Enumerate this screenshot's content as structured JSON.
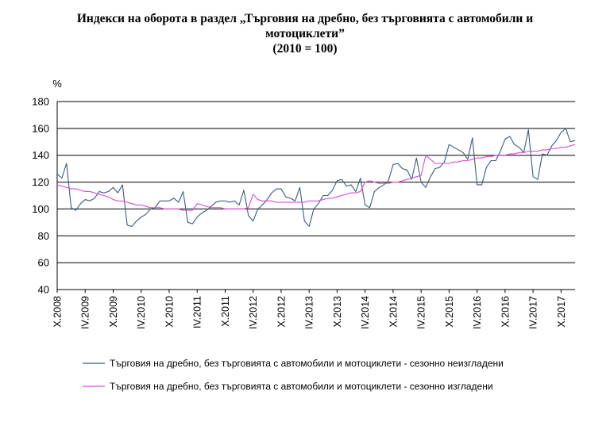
{
  "chart_data": {
    "type": "line",
    "title": "Индекси на оборота в раздел „Търговия на дребно, без търговията с автомобили и",
    "title_line2": "мотоциклети”",
    "subtitle": "(2010 = 100)",
    "ylabel": "%",
    "xlabel": "",
    "ylim": [
      40,
      180
    ],
    "yticks": [
      40,
      60,
      80,
      100,
      120,
      140,
      160,
      180
    ],
    "grid": "horizontal",
    "legend_position": "bottom",
    "x_range": [
      "X.2008",
      "XII.2017"
    ],
    "x_tick_labels": [
      "X.2008",
      "IV.2009",
      "X.2009",
      "IV.2010",
      "X.2010",
      "IV.2011",
      "X.2011",
      "IV.2012",
      "X.2012",
      "IV.2013",
      "X.2013",
      "IV.2014",
      "X.2014",
      "IV.2015",
      "X.2015",
      "IV.2016",
      "X.2016",
      "IV.2017",
      "X.2017"
    ],
    "series": [
      {
        "name": "Търговия на дребно, без търговията с автомобили  и  мотоциклети  - сезонно неизгладени",
        "color": "#3b5b7e",
        "values": [
          126,
          123,
          134,
          101,
          99,
          104,
          107,
          106,
          108,
          113,
          112,
          113,
          116,
          112,
          118,
          88,
          87,
          91,
          94,
          96,
          100,
          101,
          106,
          106,
          106,
          108,
          105,
          113,
          90,
          89,
          94,
          97,
          99,
          102,
          105,
          106,
          106,
          105,
          106,
          103,
          114,
          95,
          91,
          100,
          103,
          107,
          112,
          115,
          115,
          109,
          108,
          106,
          116,
          91,
          87,
          100,
          104,
          110,
          110,
          114,
          121,
          122,
          117,
          118,
          113,
          123,
          103,
          101,
          113,
          116,
          118,
          121,
          133,
          134,
          130,
          129,
          122,
          138,
          120,
          116,
          124,
          130,
          131,
          135,
          148,
          146,
          144,
          142,
          137,
          153,
          118,
          118,
          131,
          136,
          136,
          143,
          152,
          154,
          148,
          146,
          142,
          159,
          124,
          122,
          141,
          140,
          147,
          151,
          157,
          160,
          150,
          151
        ]
      },
      {
        "name": "Търговия на дребно, без търговията с автомобили  и  мотоциклети  - сезонно изгладени",
        "color": "#d94ad9",
        "values": [
          118,
          117,
          116,
          115,
          115,
          114,
          113,
          113,
          112,
          111,
          110,
          109,
          107,
          106,
          106,
          105,
          104,
          103,
          103,
          102,
          101,
          101,
          101,
          100,
          100,
          100,
          100,
          99,
          99,
          99,
          104,
          103,
          102,
          101,
          101,
          101,
          100,
          100,
          100,
          100,
          100,
          101,
          111,
          107,
          106,
          106,
          106,
          105,
          105,
          105,
          105,
          105,
          105,
          105,
          106,
          106,
          106,
          107,
          108,
          108,
          109,
          110,
          111,
          112,
          112,
          113,
          120,
          121,
          120,
          119,
          119,
          119,
          120,
          120,
          121,
          122,
          123,
          124,
          125,
          140,
          137,
          134,
          134,
          134,
          134,
          135,
          135,
          136,
          136,
          137,
          138,
          138,
          139,
          139,
          140,
          140,
          140,
          141,
          141,
          142,
          142,
          143,
          143,
          143,
          144,
          144,
          145,
          145,
          146,
          146,
          147,
          148
        ]
      }
    ]
  }
}
